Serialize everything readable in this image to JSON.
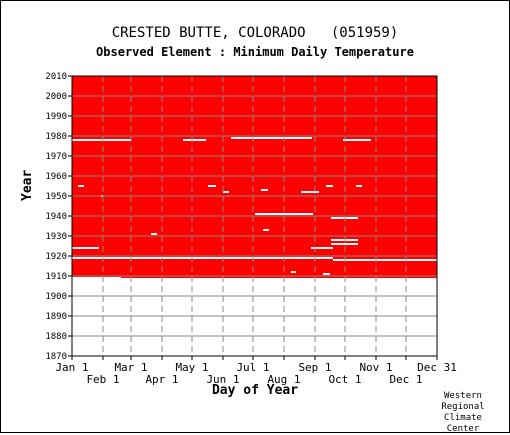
{
  "chart_data": {
    "type": "heatmap",
    "title": "CRESTED BUTTE, COLORADO   (051959)",
    "subtitle": "Observed Element : Minimum Daily Temperature",
    "xlabel": "Day of Year",
    "ylabel": "Year",
    "xlim": [
      1,
      366
    ],
    "ylim": [
      1870,
      2010
    ],
    "x_ticks_top": [
      "Jan 1",
      "Mar 1",
      "May 1",
      "Jul 1",
      "Sep 1",
      "Nov 1",
      "Dec 31"
    ],
    "x_ticks_bottom": [
      "Feb 1",
      "Apr 1",
      "Jun 1",
      "Aug 1",
      "Oct 1",
      "Dec 1"
    ],
    "y_ticks": [
      2010,
      2000,
      1990,
      1980,
      1970,
      1960,
      1950,
      1940,
      1930,
      1920,
      1910,
      1900,
      1890,
      1880,
      1870
    ],
    "data_color": "#ff0000",
    "missing_color": "#ffffff",
    "grid": true,
    "data_period": [
      1909,
      2010
    ],
    "missing_segments": [
      {
        "year": 1978,
        "x0": 1,
        "x1": 60
      },
      {
        "year": 1978,
        "x0": 272,
        "x1": 300
      },
      {
        "year": 1979,
        "x0": 160,
        "x1": 195
      },
      {
        "year": 1979,
        "x0": 184,
        "x1": 241
      },
      {
        "year": 1978,
        "x0": 112,
        "x1": 135
      },
      {
        "year": 1955,
        "x0": 7,
        "x1": 13
      },
      {
        "year": 1955,
        "x0": 137,
        "x1": 145
      },
      {
        "year": 1955,
        "x0": 255,
        "x1": 262
      },
      {
        "year": 1955,
        "x0": 285,
        "x1": 291
      },
      {
        "year": 1953,
        "x0": 190,
        "x1": 197
      },
      {
        "year": 1952,
        "x0": 230,
        "x1": 248
      },
      {
        "year": 1952,
        "x0": 152,
        "x1": 158
      },
      {
        "year": 1950,
        "x0": 30,
        "x1": 32
      },
      {
        "year": 1941,
        "x0": 184,
        "x1": 242
      },
      {
        "year": 1939,
        "x0": 260,
        "x1": 287
      },
      {
        "year": 1933,
        "x0": 192,
        "x1": 198
      },
      {
        "year": 1931,
        "x0": 80,
        "x1": 86
      },
      {
        "year": 1928,
        "x0": 260,
        "x1": 287
      },
      {
        "year": 1926,
        "x0": 260,
        "x1": 287
      },
      {
        "year": 1924,
        "x0": 1,
        "x1": 28
      },
      {
        "year": 1924,
        "x0": 240,
        "x1": 262
      },
      {
        "year": 1919,
        "x0": 1,
        "x1": 262
      },
      {
        "year": 1918,
        "x0": 262,
        "x1": 366
      },
      {
        "year": 1912,
        "x0": 220,
        "x1": 225
      },
      {
        "year": 1911,
        "x0": 252,
        "x1": 259
      },
      {
        "year": 1909,
        "x0": 1,
        "x1": 42
      },
      {
        "year": 1909,
        "x0": 42,
        "x1": 50
      }
    ]
  },
  "credit": [
    "Western",
    "Regional",
    "Climate",
    "Center"
  ]
}
